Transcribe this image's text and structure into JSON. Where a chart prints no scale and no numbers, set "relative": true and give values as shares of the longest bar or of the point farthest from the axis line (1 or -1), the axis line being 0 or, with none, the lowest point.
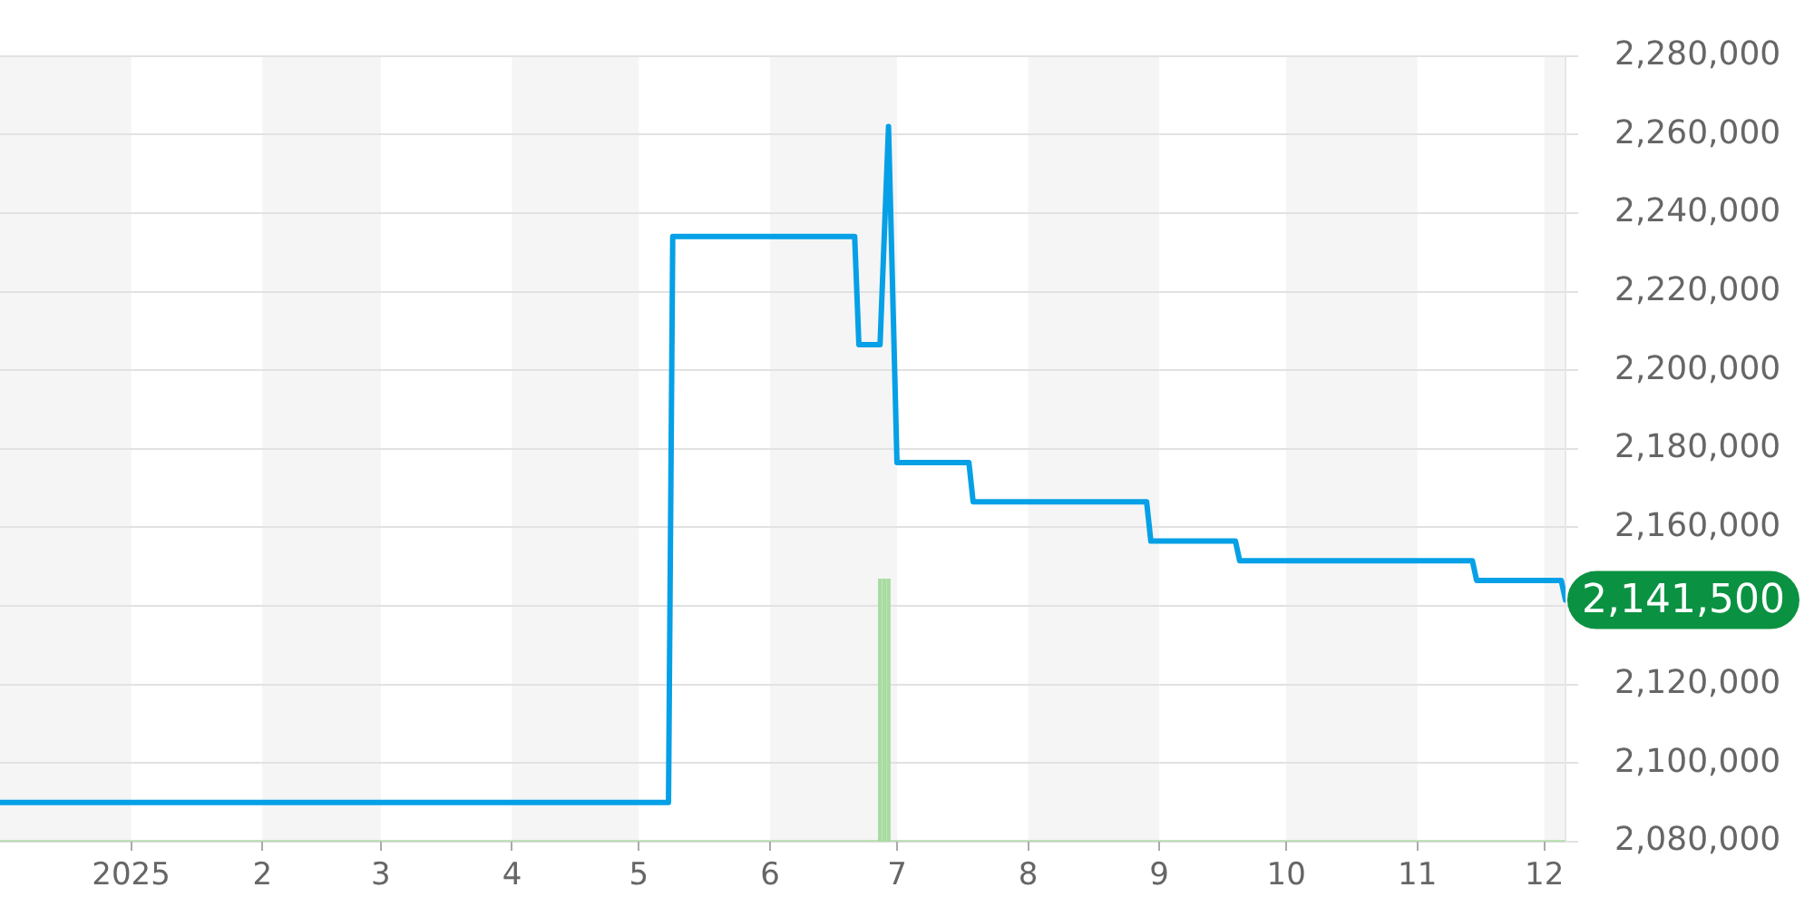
{
  "chart_data": [
    {
      "type": "line",
      "color": "#05a0e6",
      "x": [
        "2024-12-01",
        "2025-05-08",
        "2025-05-09",
        "2025-06-21",
        "2025-06-22",
        "2025-06-27",
        "2025-06-29",
        "2025-07-01",
        "2025-07-18",
        "2025-07-19",
        "2025-08-29",
        "2025-08-30",
        "2025-09-19",
        "2025-09-20",
        "2025-11-14",
        "2025-11-15",
        "2025-12-05",
        "2025-12-06"
      ],
      "values": [
        2090000,
        2090000,
        2234000,
        2234000,
        2206500,
        2206500,
        2262000,
        2176500,
        2176500,
        2166500,
        2166500,
        2156500,
        2156500,
        2151500,
        2151500,
        2146500,
        2146500,
        2141500
      ],
      "xlim": [
        "2024-12-01",
        "2025-12-06"
      ],
      "ylim": [
        2080000,
        2280000
      ],
      "yticks": [
        {
          "value": 2080000,
          "label": "2,080,000"
        },
        {
          "value": 2100000,
          "label": "2,100,000"
        },
        {
          "value": 2120000,
          "label": "2,120,000"
        },
        {
          "value": 2140000,
          "label": null
        },
        {
          "value": 2160000,
          "label": "2,160,000"
        },
        {
          "value": 2180000,
          "label": "2,180,000"
        },
        {
          "value": 2200000,
          "label": "2,200,000"
        },
        {
          "value": 2220000,
          "label": "2,220,000"
        },
        {
          "value": 2240000,
          "label": "2,240,000"
        },
        {
          "value": 2260000,
          "label": "2,260,000"
        },
        {
          "value": 2280000,
          "label": "2,280,000"
        }
      ],
      "tick_labels": "y",
      "grid": "y",
      "bands": [
        {
          "axis": "x",
          "from": "2024-12-01",
          "to": "2025-01-01",
          "color": "#f5f5f5"
        },
        {
          "axis": "x",
          "from": "2025-02-01",
          "to": "2025-03-01",
          "color": "#f5f5f5"
        },
        {
          "axis": "x",
          "from": "2025-04-01",
          "to": "2025-05-01",
          "color": "#f5f5f5"
        },
        {
          "axis": "x",
          "from": "2025-06-01",
          "to": "2025-07-01",
          "color": "#f5f5f5"
        },
        {
          "axis": "x",
          "from": "2025-08-01",
          "to": "2025-09-01",
          "color": "#f5f5f5"
        },
        {
          "axis": "x",
          "from": "2025-10-01",
          "to": "2025-11-01",
          "color": "#f5f5f5"
        },
        {
          "axis": "x",
          "from": "2025-12-01",
          "to": "2025-12-06",
          "color": "#f5f5f5"
        }
      ],
      "annotations": [
        {
          "text": "2,141,500",
          "x": "2025-12-06",
          "y": 2141500
        }
      ]
    },
    {
      "type": "bar",
      "relative": true,
      "color": "#a8dca0",
      "x": [
        "2025-06-27",
        "2025-06-28",
        "2025-06-29"
      ],
      "values": [
        1,
        1,
        1
      ],
      "xlim": [
        "2024-12-01",
        "2025-12-06"
      ],
      "xticks": [
        {
          "value": "2025-01-01",
          "label": "2025"
        },
        {
          "value": "2025-02-01",
          "label": "2"
        },
        {
          "value": "2025-03-01",
          "label": "3"
        },
        {
          "value": "2025-04-01",
          "label": "4"
        },
        {
          "value": "2025-05-01",
          "label": "5"
        },
        {
          "value": "2025-06-01",
          "label": "6"
        },
        {
          "value": "2025-07-01",
          "label": "7"
        },
        {
          "value": "2025-08-01",
          "label": "8"
        },
        {
          "value": "2025-09-01",
          "label": "9"
        },
        {
          "value": "2025-10-01",
          "label": "10"
        },
        {
          "value": "2025-11-01",
          "label": "11"
        },
        {
          "value": "2025-12-01",
          "label": "12"
        }
      ],
      "tick_labels": "x"
    }
  ]
}
